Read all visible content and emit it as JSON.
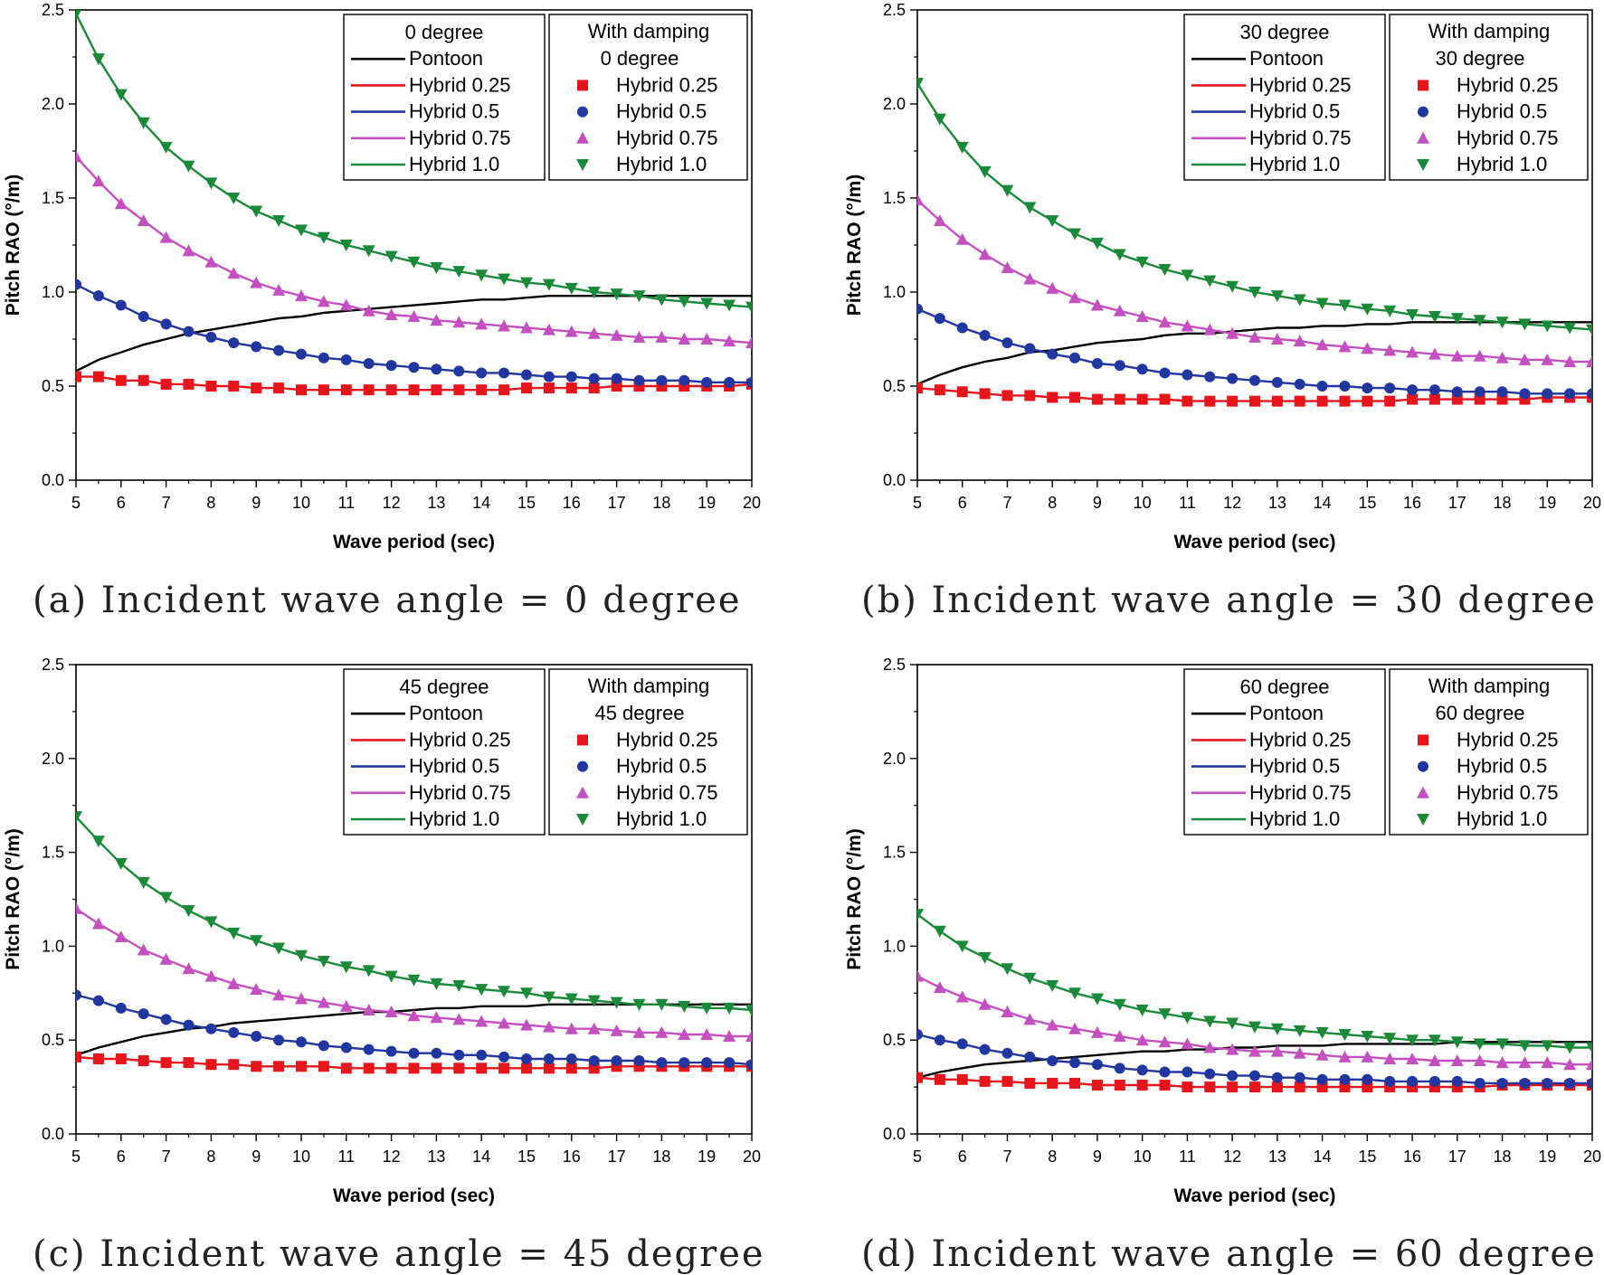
{
  "figure": {
    "ylabel": "Pitch RAO (°/m)",
    "xlabel": "Wave period (sec)",
    "legend_damping_title": "With damping",
    "series_names": [
      "Pontoon",
      "Hybrid 0.25",
      "Hybrid 0.5",
      "Hybrid 0.75",
      "Hybrid 1.0"
    ],
    "colors": {
      "Pontoon": "#000000",
      "Hybrid 0.25": "#e8141c",
      "Hybrid 0.5": "#2236a0",
      "Hybrid 0.75": "#c450c0",
      "Hybrid 1.0": "#1a8a3a"
    }
  },
  "chart_data": [
    {
      "type": "line",
      "panel": "a",
      "caption": "(a) Incident wave angle = 0 degree",
      "angle_label": "0 degree",
      "title": "",
      "xlabel": "Wave period (sec)",
      "ylabel": "Pitch RAO (°/m)",
      "xlim": [
        5,
        20
      ],
      "ylim": [
        0.0,
        2.5
      ],
      "xticks": [
        5,
        6,
        7,
        8,
        9,
        10,
        11,
        12,
        13,
        14,
        15,
        16,
        17,
        18,
        19,
        20
      ],
      "yticks": [
        "0.0",
        "0.5",
        "1.0",
        "1.5",
        "2.0",
        "2.5"
      ],
      "x": [
        5,
        5.5,
        6,
        6.5,
        7,
        7.5,
        8,
        8.5,
        9,
        9.5,
        10,
        10.5,
        11,
        11.5,
        12,
        12.5,
        13,
        13.5,
        14,
        14.5,
        15,
        15.5,
        16,
        16.5,
        17,
        17.5,
        18,
        18.5,
        19,
        19.5,
        20
      ],
      "series": [
        {
          "name": "Pontoon",
          "values": [
            0.58,
            0.64,
            0.68,
            0.72,
            0.75,
            0.78,
            0.8,
            0.82,
            0.84,
            0.86,
            0.87,
            0.89,
            0.9,
            0.91,
            0.92,
            0.93,
            0.94,
            0.95,
            0.96,
            0.96,
            0.97,
            0.98,
            0.98,
            0.98,
            0.98,
            0.98,
            0.98,
            0.98,
            0.98,
            0.98,
            0.98
          ]
        },
        {
          "name": "Hybrid 0.25",
          "values": [
            0.55,
            0.55,
            0.53,
            0.53,
            0.51,
            0.51,
            0.5,
            0.5,
            0.49,
            0.49,
            0.48,
            0.48,
            0.48,
            0.48,
            0.48,
            0.48,
            0.48,
            0.48,
            0.48,
            0.48,
            0.49,
            0.49,
            0.49,
            0.49,
            0.5,
            0.5,
            0.5,
            0.5,
            0.5,
            0.5,
            0.51
          ]
        },
        {
          "name": "Hybrid 0.5",
          "values": [
            1.04,
            0.98,
            0.93,
            0.87,
            0.83,
            0.79,
            0.76,
            0.73,
            0.71,
            0.69,
            0.67,
            0.65,
            0.64,
            0.62,
            0.61,
            0.6,
            0.59,
            0.58,
            0.57,
            0.57,
            0.56,
            0.55,
            0.55,
            0.54,
            0.54,
            0.53,
            0.53,
            0.53,
            0.52,
            0.52,
            0.52
          ]
        },
        {
          "name": "Hybrid 0.75",
          "values": [
            1.72,
            1.59,
            1.47,
            1.38,
            1.29,
            1.22,
            1.16,
            1.1,
            1.05,
            1.01,
            0.98,
            0.95,
            0.93,
            0.9,
            0.88,
            0.87,
            0.85,
            0.84,
            0.83,
            0.82,
            0.81,
            0.8,
            0.79,
            0.78,
            0.77,
            0.76,
            0.76,
            0.75,
            0.75,
            0.74,
            0.73
          ]
        },
        {
          "name": "Hybrid 1.0",
          "values": [
            2.48,
            2.24,
            2.05,
            1.9,
            1.77,
            1.67,
            1.58,
            1.5,
            1.43,
            1.38,
            1.33,
            1.29,
            1.25,
            1.22,
            1.19,
            1.16,
            1.13,
            1.11,
            1.09,
            1.07,
            1.05,
            1.04,
            1.02,
            1.0,
            0.99,
            0.98,
            0.96,
            0.95,
            0.94,
            0.93,
            0.92
          ]
        }
      ]
    },
    {
      "type": "line",
      "panel": "b",
      "caption": "(b) Incident wave angle = 30 degree",
      "angle_label": "30 degree",
      "title": "",
      "xlabel": "Wave period (sec)",
      "ylabel": "Pitch RAO (°/m)",
      "xlim": [
        5,
        20
      ],
      "ylim": [
        0.0,
        2.5
      ],
      "xticks": [
        5,
        6,
        7,
        8,
        9,
        10,
        11,
        12,
        13,
        14,
        15,
        16,
        17,
        18,
        19,
        20
      ],
      "yticks": [
        "0.0",
        "0.5",
        "1.0",
        "1.5",
        "2.0",
        "2.5"
      ],
      "x": [
        5,
        5.5,
        6,
        6.5,
        7,
        7.5,
        8,
        8.5,
        9,
        9.5,
        10,
        10.5,
        11,
        11.5,
        12,
        12.5,
        13,
        13.5,
        14,
        14.5,
        15,
        15.5,
        16,
        16.5,
        17,
        17.5,
        18,
        18.5,
        19,
        19.5,
        20
      ],
      "series": [
        {
          "name": "Pontoon",
          "values": [
            0.51,
            0.56,
            0.6,
            0.63,
            0.65,
            0.68,
            0.69,
            0.71,
            0.73,
            0.74,
            0.75,
            0.77,
            0.78,
            0.78,
            0.79,
            0.8,
            0.81,
            0.81,
            0.82,
            0.82,
            0.83,
            0.83,
            0.84,
            0.84,
            0.84,
            0.84,
            0.84,
            0.84,
            0.84,
            0.84,
            0.84
          ]
        },
        {
          "name": "Hybrid 0.25",
          "values": [
            0.49,
            0.48,
            0.47,
            0.46,
            0.45,
            0.45,
            0.44,
            0.44,
            0.43,
            0.43,
            0.43,
            0.43,
            0.42,
            0.42,
            0.42,
            0.42,
            0.42,
            0.42,
            0.42,
            0.42,
            0.42,
            0.42,
            0.43,
            0.43,
            0.43,
            0.43,
            0.43,
            0.43,
            0.44,
            0.44,
            0.44
          ]
        },
        {
          "name": "Hybrid 0.5",
          "values": [
            0.91,
            0.86,
            0.81,
            0.77,
            0.73,
            0.7,
            0.67,
            0.65,
            0.62,
            0.61,
            0.59,
            0.57,
            0.56,
            0.55,
            0.54,
            0.53,
            0.52,
            0.51,
            0.5,
            0.5,
            0.49,
            0.49,
            0.48,
            0.48,
            0.47,
            0.47,
            0.47,
            0.46,
            0.46,
            0.46,
            0.46
          ]
        },
        {
          "name": "Hybrid 0.75",
          "values": [
            1.49,
            1.38,
            1.28,
            1.2,
            1.13,
            1.07,
            1.02,
            0.97,
            0.93,
            0.9,
            0.87,
            0.84,
            0.82,
            0.8,
            0.78,
            0.76,
            0.75,
            0.74,
            0.72,
            0.71,
            0.7,
            0.69,
            0.68,
            0.67,
            0.66,
            0.66,
            0.65,
            0.64,
            0.64,
            0.63,
            0.63
          ]
        },
        {
          "name": "Hybrid 1.0",
          "values": [
            2.11,
            1.92,
            1.77,
            1.64,
            1.54,
            1.45,
            1.38,
            1.31,
            1.26,
            1.2,
            1.16,
            1.12,
            1.09,
            1.06,
            1.03,
            1.0,
            0.98,
            0.96,
            0.94,
            0.93,
            0.91,
            0.9,
            0.88,
            0.87,
            0.86,
            0.85,
            0.84,
            0.83,
            0.82,
            0.81,
            0.8
          ]
        }
      ]
    },
    {
      "type": "line",
      "panel": "c",
      "caption": "(c) Incident wave angle = 45 degree",
      "angle_label": "45 degree",
      "title": "",
      "xlabel": "Wave period (sec)",
      "ylabel": "Pitch RAO (°/m)",
      "xlim": [
        5,
        20
      ],
      "ylim": [
        0.0,
        2.5
      ],
      "xticks": [
        5,
        6,
        7,
        8,
        9,
        10,
        11,
        12,
        13,
        14,
        15,
        16,
        17,
        18,
        19,
        20
      ],
      "yticks": [
        "0.0",
        "0.5",
        "1.0",
        "1.5",
        "2.0",
        "2.5"
      ],
      "x": [
        5,
        5.5,
        6,
        6.5,
        7,
        7.5,
        8,
        8.5,
        9,
        9.5,
        10,
        10.5,
        11,
        11.5,
        12,
        12.5,
        13,
        13.5,
        14,
        14.5,
        15,
        15.5,
        16,
        16.5,
        17,
        17.5,
        18,
        18.5,
        19,
        19.5,
        20
      ],
      "series": [
        {
          "name": "Pontoon",
          "values": [
            0.42,
            0.46,
            0.49,
            0.52,
            0.54,
            0.56,
            0.57,
            0.59,
            0.6,
            0.61,
            0.62,
            0.63,
            0.64,
            0.65,
            0.65,
            0.66,
            0.67,
            0.67,
            0.68,
            0.68,
            0.68,
            0.69,
            0.69,
            0.69,
            0.69,
            0.69,
            0.69,
            0.69,
            0.69,
            0.69,
            0.69
          ]
        },
        {
          "name": "Hybrid 0.25",
          "values": [
            0.41,
            0.4,
            0.4,
            0.39,
            0.38,
            0.38,
            0.37,
            0.37,
            0.36,
            0.36,
            0.36,
            0.36,
            0.35,
            0.35,
            0.35,
            0.35,
            0.35,
            0.35,
            0.35,
            0.35,
            0.35,
            0.35,
            0.35,
            0.35,
            0.36,
            0.36,
            0.36,
            0.36,
            0.36,
            0.36,
            0.36
          ]
        },
        {
          "name": "Hybrid 0.5",
          "values": [
            0.74,
            0.71,
            0.67,
            0.64,
            0.61,
            0.58,
            0.56,
            0.54,
            0.52,
            0.5,
            0.49,
            0.47,
            0.46,
            0.45,
            0.44,
            0.43,
            0.43,
            0.42,
            0.42,
            0.41,
            0.4,
            0.4,
            0.4,
            0.39,
            0.39,
            0.39,
            0.38,
            0.38,
            0.38,
            0.38,
            0.37
          ]
        },
        {
          "name": "Hybrid 0.75",
          "values": [
            1.2,
            1.12,
            1.05,
            0.98,
            0.93,
            0.88,
            0.84,
            0.8,
            0.77,
            0.74,
            0.72,
            0.7,
            0.68,
            0.66,
            0.65,
            0.63,
            0.62,
            0.61,
            0.6,
            0.59,
            0.58,
            0.57,
            0.56,
            0.56,
            0.55,
            0.54,
            0.54,
            0.53,
            0.53,
            0.52,
            0.52
          ]
        },
        {
          "name": "Hybrid 1.0",
          "values": [
            1.69,
            1.56,
            1.44,
            1.34,
            1.26,
            1.19,
            1.13,
            1.07,
            1.03,
            0.99,
            0.95,
            0.92,
            0.89,
            0.87,
            0.84,
            0.82,
            0.8,
            0.79,
            0.77,
            0.76,
            0.75,
            0.73,
            0.72,
            0.71,
            0.7,
            0.69,
            0.69,
            0.68,
            0.67,
            0.67,
            0.66
          ]
        }
      ]
    },
    {
      "type": "line",
      "panel": "d",
      "caption": "(d) Incident wave angle = 60 degree",
      "angle_label": "60 degree",
      "title": "",
      "xlabel": "Wave period (sec)",
      "ylabel": "Pitch RAO (°/m)",
      "xlim": [
        5,
        20
      ],
      "ylim": [
        0.0,
        2.5
      ],
      "xticks": [
        5,
        6,
        7,
        8,
        9,
        10,
        11,
        12,
        13,
        14,
        15,
        16,
        17,
        18,
        19,
        20
      ],
      "yticks": [
        "0.0",
        "0.5",
        "1.0",
        "1.5",
        "2.0",
        "2.5"
      ],
      "x": [
        5,
        5.5,
        6,
        6.5,
        7,
        7.5,
        8,
        8.5,
        9,
        9.5,
        10,
        10.5,
        11,
        11.5,
        12,
        12.5,
        13,
        13.5,
        14,
        14.5,
        15,
        15.5,
        16,
        16.5,
        17,
        17.5,
        18,
        18.5,
        19,
        19.5,
        20
      ],
      "series": [
        {
          "name": "Pontoon",
          "values": [
            0.3,
            0.33,
            0.35,
            0.37,
            0.38,
            0.39,
            0.4,
            0.41,
            0.42,
            0.43,
            0.44,
            0.44,
            0.45,
            0.45,
            0.46,
            0.46,
            0.47,
            0.47,
            0.47,
            0.48,
            0.48,
            0.48,
            0.48,
            0.48,
            0.49,
            0.49,
            0.49,
            0.49,
            0.49,
            0.49,
            0.49
          ]
        },
        {
          "name": "Hybrid 0.25",
          "values": [
            0.3,
            0.29,
            0.29,
            0.28,
            0.28,
            0.27,
            0.27,
            0.27,
            0.26,
            0.26,
            0.26,
            0.26,
            0.25,
            0.25,
            0.25,
            0.25,
            0.25,
            0.25,
            0.25,
            0.25,
            0.25,
            0.25,
            0.25,
            0.25,
            0.25,
            0.25,
            0.26,
            0.26,
            0.26,
            0.26,
            0.26
          ]
        },
        {
          "name": "Hybrid 0.5",
          "values": [
            0.53,
            0.5,
            0.48,
            0.45,
            0.43,
            0.41,
            0.39,
            0.38,
            0.37,
            0.35,
            0.34,
            0.33,
            0.33,
            0.32,
            0.31,
            0.31,
            0.3,
            0.3,
            0.29,
            0.29,
            0.29,
            0.28,
            0.28,
            0.28,
            0.28,
            0.27,
            0.27,
            0.27,
            0.27,
            0.27,
            0.27
          ]
        },
        {
          "name": "Hybrid 0.75",
          "values": [
            0.84,
            0.78,
            0.73,
            0.69,
            0.65,
            0.61,
            0.58,
            0.56,
            0.54,
            0.52,
            0.5,
            0.49,
            0.48,
            0.46,
            0.45,
            0.44,
            0.44,
            0.43,
            0.42,
            0.41,
            0.41,
            0.4,
            0.4,
            0.39,
            0.39,
            0.39,
            0.38,
            0.38,
            0.38,
            0.37,
            0.37
          ]
        },
        {
          "name": "Hybrid 1.0",
          "values": [
            1.17,
            1.08,
            1.0,
            0.94,
            0.88,
            0.83,
            0.79,
            0.75,
            0.72,
            0.69,
            0.66,
            0.64,
            0.62,
            0.6,
            0.59,
            0.57,
            0.56,
            0.55,
            0.54,
            0.53,
            0.52,
            0.51,
            0.5,
            0.5,
            0.49,
            0.48,
            0.48,
            0.47,
            0.47,
            0.46,
            0.46
          ]
        }
      ]
    }
  ]
}
